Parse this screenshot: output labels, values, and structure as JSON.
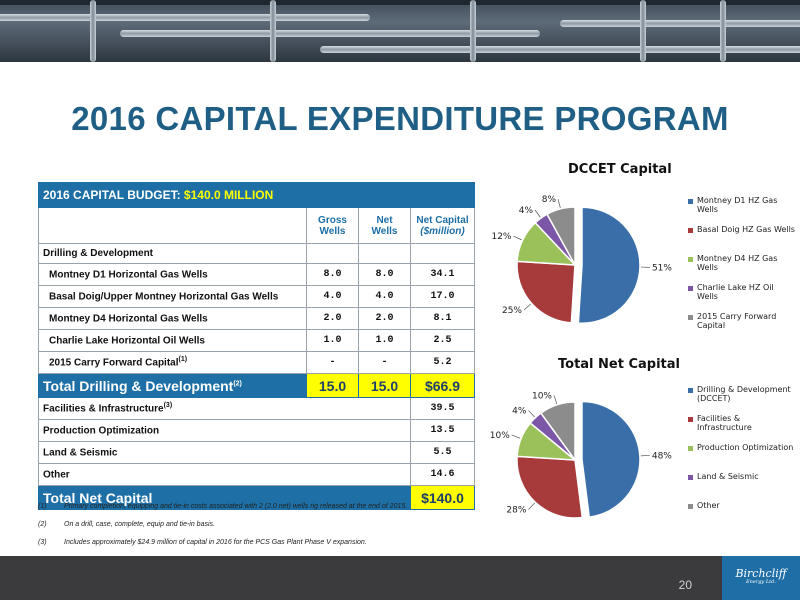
{
  "slide_title": "2016 CAPITAL EXPENDITURE PROGRAM",
  "budget": {
    "header_prefix": "2016 CAPITAL BUDGET: ",
    "header_amount": "$140.0 MILLION",
    "columns": {
      "gross": "Gross Wells",
      "net": "Net Wells",
      "capital": "Net Capital",
      "capital_unit": "($million)"
    },
    "section_drilling": "Drilling & Development",
    "drilling_rows": [
      {
        "label": "Montney D1 Horizontal Gas Wells",
        "sup": "",
        "gross": "8.0",
        "net": "8.0",
        "capital": "34.1"
      },
      {
        "label": "Basal Doig/Upper Montney Horizontal Gas Wells",
        "sup": "",
        "gross": "4.0",
        "net": "4.0",
        "capital": "17.0"
      },
      {
        "label": "Montney D4 Horizontal Gas Wells",
        "sup": "",
        "gross": "2.0",
        "net": "2.0",
        "capital": "8.1"
      },
      {
        "label": "Charlie Lake Horizontal Oil Wells",
        "sup": "",
        "gross": "1.0",
        "net": "1.0",
        "capital": "2.5"
      },
      {
        "label": "2015 Carry Forward Capital",
        "sup": "(1)",
        "gross": "-",
        "net": "-",
        "capital": "5.2"
      }
    ],
    "total_drilling": {
      "label": "Total Drilling & Development",
      "sup": "(2)",
      "gross": "15.0",
      "net": "15.0",
      "capital": "$66.9"
    },
    "other_rows": [
      {
        "label": "Facilities & Infrastructure",
        "sup": "(3)",
        "capital": "39.5"
      },
      {
        "label": "Production Optimization",
        "sup": "",
        "capital": "13.5"
      },
      {
        "label": "Land & Seismic",
        "sup": "",
        "capital": "5.5"
      },
      {
        "label": "Other",
        "sup": "",
        "capital": "14.6"
      }
    ],
    "total_net": {
      "label": "Total Net Capital",
      "capital": "$140.0"
    }
  },
  "notes": [
    {
      "id": "(1)",
      "text": "Primary completion, equipping and tie-in costs associated with 2 (2.0 net) wells rig released at the end of 2015."
    },
    {
      "id": "(2)",
      "text": "On a drill, case, complete, equip and tie-in basis."
    },
    {
      "id": "(3)",
      "text": "Includes approximately $24.9 million of capital in 2016 for the PCS Gas Plant Phase V expansion."
    }
  ],
  "page_number": "20",
  "logo": {
    "text": "Birchcliff",
    "sub": "Energy Ltd."
  },
  "colors": {
    "title": "#1f5f86",
    "table_blue": "#1d6fa5",
    "highlight": "#ffff00",
    "pie": [
      "#3a6ea8",
      "#a73a3a",
      "#9bc15b",
      "#7d57a7",
      "#8c8c8c"
    ]
  },
  "chart_data": [
    {
      "type": "pie",
      "title": "DCCET Capital",
      "categories": [
        "Montney D1 HZ Gas Wells",
        "Basal Doig HZ Gas Wells",
        "Montney D4 HZ Gas Wells",
        "Charlie Lake HZ Oil Wells",
        "2015 Carry Forward Capital"
      ],
      "values": [
        51,
        25,
        12,
        4,
        8
      ],
      "labels": [
        "51%",
        "25%",
        "12%",
        "4%",
        "8%"
      ],
      "legend": "right"
    },
    {
      "type": "pie",
      "title": "Total Net Capital",
      "categories": [
        "Drilling & Development (DCCET)",
        "Facilities & Infrastructure",
        "Production Optimization",
        "Land & Seismic",
        "Other"
      ],
      "values": [
        48,
        28,
        10,
        4,
        10
      ],
      "labels": [
        "48%",
        "28%",
        "10%",
        "4%",
        "10%"
      ],
      "legend": "right"
    }
  ]
}
